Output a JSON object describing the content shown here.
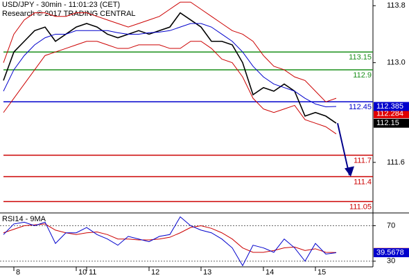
{
  "chart_data": [
    {
      "type": "line",
      "title": "USD/JPY - 30min - 11:01:23 (CET)",
      "subtitle": "Research © 2017 TRADING CENTRAL",
      "categories": [
        null,
        "8",
        null,
        null,
        null,
        null,
        null,
        "10",
        "11",
        null,
        null,
        null,
        null,
        null,
        "12",
        null,
        null,
        null,
        null,
        "13",
        null,
        null,
        null,
        null,
        null,
        "14",
        null,
        null,
        null,
        null,
        "15",
        null,
        null
      ],
      "series": [
        {
          "color": "#000000",
          "labeled": true,
          "values": [
            112.75,
            113.15,
            113.3,
            113.45,
            113.5,
            113.3,
            113.4,
            113.5,
            113.55,
            113.5,
            113.4,
            113.35,
            113.4,
            113.45,
            113.4,
            113.45,
            113.5,
            113.7,
            113.6,
            113.5,
            113.3,
            113.3,
            113.25,
            113.0,
            112.55,
            112.65,
            112.6,
            112.7,
            112.6,
            112.25,
            112.3,
            112.25,
            112.15
          ]
        },
        {
          "color": "#0000cc",
          "labeled": true,
          "values": [
            112.6,
            112.9,
            113.1,
            113.25,
            113.35,
            113.4,
            113.4,
            113.45,
            113.45,
            113.45,
            113.45,
            113.42,
            113.4,
            113.4,
            113.42,
            113.43,
            113.45,
            113.5,
            113.55,
            113.55,
            113.5,
            113.4,
            113.3,
            113.15,
            112.95,
            112.8,
            112.7,
            112.65,
            112.6,
            112.5,
            112.42,
            112.38,
            112.385
          ]
        },
        {
          "color": "#cc0000",
          "values": [
            113.0,
            113.4,
            113.6,
            113.7,
            113.7,
            113.65,
            113.65,
            113.7,
            113.7,
            113.65,
            113.6,
            113.55,
            113.5,
            113.55,
            113.6,
            113.65,
            113.75,
            113.85,
            113.85,
            113.75,
            113.65,
            113.55,
            113.45,
            113.4,
            113.3,
            113.1,
            112.95,
            112.9,
            112.8,
            112.75,
            112.6,
            112.45,
            112.5
          ]
        },
        {
          "color": "#cc0000",
          "values": [
            112.3,
            112.5,
            112.7,
            112.9,
            113.1,
            113.15,
            113.2,
            113.25,
            113.3,
            113.3,
            113.25,
            113.2,
            113.2,
            113.25,
            113.25,
            113.25,
            113.2,
            113.2,
            113.3,
            113.3,
            113.2,
            113.05,
            113.0,
            112.8,
            112.5,
            112.35,
            112.3,
            112.35,
            112.4,
            112.2,
            112.15,
            112.1,
            112.0
          ]
        }
      ],
      "levels": [
        {
          "value": 113.15,
          "color": "#1a8f1a"
        },
        {
          "value": 112.9,
          "color": "#1a8f1a"
        },
        {
          "value": 112.45,
          "color": "#0000cc"
        },
        {
          "value": 111.7,
          "color": "#cc0000"
        },
        {
          "value": 111.4,
          "color": "#cc0000"
        },
        {
          "value": 111.05,
          "color": "#cc0000"
        }
      ],
      "markers": [
        {
          "value": 112.284,
          "color": "#e00000"
        }
      ],
      "ylim": [
        110.89,
        113.88
      ],
      "yticks": [
        111.6,
        {
          "value": 113,
          "label": "113.0"
        },
        113.8
      ]
    },
    {
      "type": "line",
      "title": "RSI14 - 9MA",
      "series": [
        {
          "color": "#cc0000",
          "labeled": true,
          "values": [
            62,
            66,
            70,
            71,
            72,
            65,
            62,
            60,
            62,
            63,
            60,
            55,
            55,
            54,
            54,
            55,
            57,
            62,
            68,
            70,
            67,
            62,
            55,
            45,
            40,
            40,
            42,
            45,
            46,
            42,
            44,
            40,
            39.8127
          ]
        },
        {
          "color": "#0000cc",
          "labeled": true,
          "values": [
            60,
            72,
            74,
            70,
            74,
            50,
            62,
            62,
            68,
            60,
            55,
            48,
            58,
            55,
            52,
            58,
            60,
            80,
            70,
            65,
            62,
            55,
            45,
            25,
            48,
            45,
            40,
            55,
            45,
            30,
            50,
            38,
            39.5678
          ]
        }
      ],
      "ylim": [
        23.6,
        84.4
      ],
      "yticks": [
        70,
        30
      ],
      "grid": true
    }
  ]
}
